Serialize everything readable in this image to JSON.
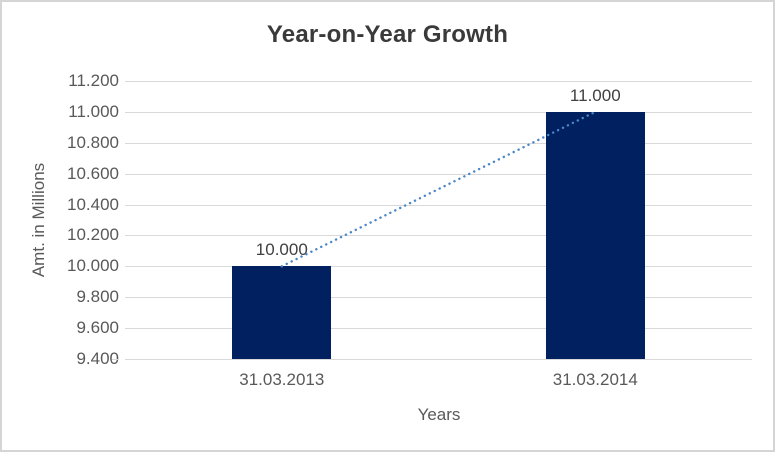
{
  "frame": {
    "border_color": "#d5d5d5",
    "background": "#ffffff"
  },
  "chart_data": {
    "type": "bar",
    "title": "Year-on-Year Growth",
    "xlabel": "Years",
    "ylabel": "Amt. in Millions",
    "categories": [
      "31.03.2013",
      "31.03.2014"
    ],
    "values": [
      10000,
      11000
    ],
    "data_labels": [
      "10.000",
      "11.000"
    ],
    "ylim": [
      9400,
      11200
    ],
    "ytick_step": 200,
    "ytick_labels": [
      "9.400",
      "9.600",
      "9.800",
      "10.000",
      "10.200",
      "10.400",
      "10.600",
      "10.800",
      "11.000",
      "11.200"
    ],
    "grid": true,
    "legend": "none",
    "bar_color": "#002060",
    "gridline_color": "#d9d9d9",
    "text_colors": {
      "title": "#3a3a3a",
      "axis_labels": "#595959",
      "data_labels": "#404040"
    },
    "trendline": {
      "type": "linear",
      "style": "dotted",
      "color": "#4a86c8",
      "from_value": 10000,
      "to_value": 11000
    }
  }
}
